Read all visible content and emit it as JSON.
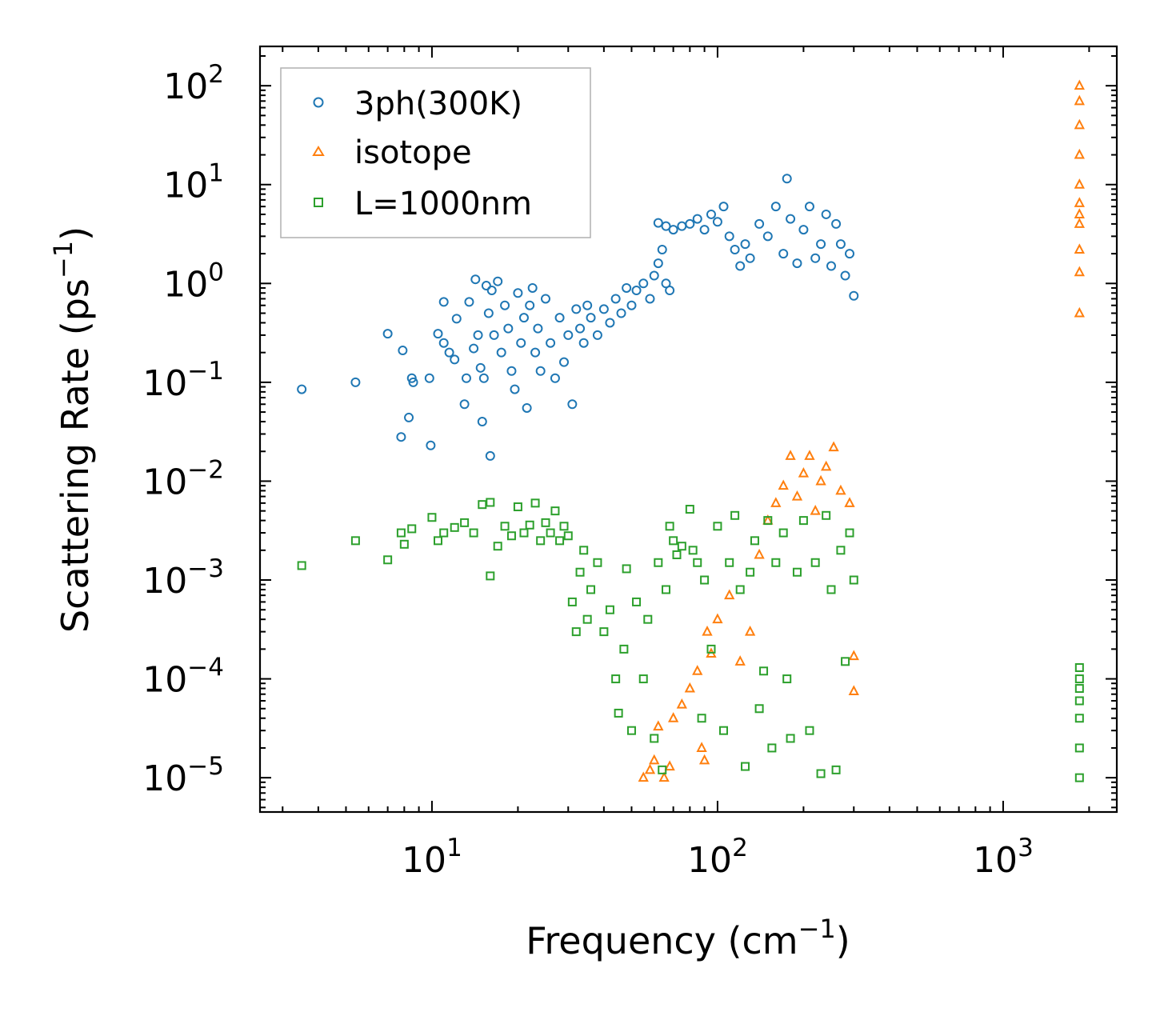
{
  "chart_data": {
    "type": "scatter",
    "title": "",
    "xlabel": "Frequency (cm",
    "xlabel_sup": "−1",
    "xlabel_end": ")",
    "ylabel": "Scattering Rate (ps",
    "ylabel_sup": "−1",
    "ylabel_end": ")",
    "xscale": "log",
    "yscale": "log",
    "xlim": [
      2.5,
      2500
    ],
    "ylim": [
      4.5e-06,
      250
    ],
    "grid": false,
    "legend_position": "upper left",
    "x_ticks": [
      {
        "value": 10,
        "base": "10",
        "exp": "1"
      },
      {
        "value": 100,
        "base": "10",
        "exp": "2"
      },
      {
        "value": 1000,
        "base": "10",
        "exp": "3"
      }
    ],
    "y_ticks": [
      {
        "value": 100,
        "base": "10",
        "exp": "2"
      },
      {
        "value": 10,
        "base": "10",
        "exp": "1"
      },
      {
        "value": 1,
        "base": "10",
        "exp": "0"
      },
      {
        "value": 0.1,
        "base": "10",
        "exp": "−1"
      },
      {
        "value": 0.01,
        "base": "10",
        "exp": "−2"
      },
      {
        "value": 0.001,
        "base": "10",
        "exp": "−3"
      },
      {
        "value": 0.0001,
        "base": "10",
        "exp": "−4"
      },
      {
        "value": 1e-05,
        "base": "10",
        "exp": "−5"
      }
    ],
    "series": [
      {
        "name": "3ph(300K)",
        "marker": "circle",
        "color": "#1f77b4",
        "points": [
          [
            3.5,
            0.085
          ],
          [
            5.4,
            0.1
          ],
          [
            7.0,
            0.31
          ],
          [
            7.8,
            0.028
          ],
          [
            7.9,
            0.21
          ],
          [
            8.3,
            0.044
          ],
          [
            8.5,
            0.11
          ],
          [
            8.6,
            0.1
          ],
          [
            9.8,
            0.11
          ],
          [
            9.9,
            0.023
          ],
          [
            10.5,
            0.31
          ],
          [
            11.0,
            0.65
          ],
          [
            11.0,
            0.25
          ],
          [
            11.5,
            0.2
          ],
          [
            12.0,
            0.17
          ],
          [
            12.2,
            0.44
          ],
          [
            13.0,
            0.06
          ],
          [
            13.2,
            0.11
          ],
          [
            13.5,
            0.65
          ],
          [
            14.0,
            0.22
          ],
          [
            14.2,
            1.1
          ],
          [
            14.5,
            0.3
          ],
          [
            14.8,
            0.14
          ],
          [
            15.0,
            0.04
          ],
          [
            15.2,
            0.11
          ],
          [
            15.5,
            0.95
          ],
          [
            15.8,
            0.5
          ],
          [
            16.0,
            0.018
          ],
          [
            16.2,
            0.85
          ],
          [
            16.5,
            0.3
          ],
          [
            17.0,
            1.05
          ],
          [
            17.5,
            0.2
          ],
          [
            18.0,
            0.6
          ],
          [
            18.5,
            0.35
          ],
          [
            19.0,
            0.13
          ],
          [
            19.5,
            0.085
          ],
          [
            20.0,
            0.8
          ],
          [
            20.5,
            0.25
          ],
          [
            21.0,
            0.45
          ],
          [
            21.5,
            0.055
          ],
          [
            22.0,
            0.6
          ],
          [
            22.5,
            0.9
          ],
          [
            23.0,
            0.2
          ],
          [
            23.5,
            0.35
          ],
          [
            24.0,
            0.13
          ],
          [
            25.0,
            0.7
          ],
          [
            26.0,
            0.25
          ],
          [
            27.0,
            0.11
          ],
          [
            28.0,
            0.45
          ],
          [
            29.0,
            0.16
          ],
          [
            30.0,
            0.3
          ],
          [
            31.0,
            0.06
          ],
          [
            32.0,
            0.55
          ],
          [
            33.0,
            0.35
          ],
          [
            34.0,
            0.25
          ],
          [
            35.0,
            0.6
          ],
          [
            36.0,
            0.45
          ],
          [
            38.0,
            0.3
          ],
          [
            40.0,
            0.55
          ],
          [
            42.0,
            0.4
          ],
          [
            44.0,
            0.7
          ],
          [
            46.0,
            0.5
          ],
          [
            48.0,
            0.9
          ],
          [
            50.0,
            0.6
          ],
          [
            52.0,
            0.85
          ],
          [
            55.0,
            1.0
          ],
          [
            58.0,
            0.7
          ],
          [
            60.0,
            1.2
          ],
          [
            62.0,
            1.6
          ],
          [
            64.0,
            2.2
          ],
          [
            66.0,
            1.0
          ],
          [
            68.0,
            0.85
          ],
          [
            62.0,
            4.1
          ],
          [
            66.0,
            3.8
          ],
          [
            70.0,
            3.5
          ],
          [
            75.0,
            3.8
          ],
          [
            80.0,
            4.0
          ],
          [
            85.0,
            4.5
          ],
          [
            90.0,
            3.5
          ],
          [
            95.0,
            5.0
          ],
          [
            100.0,
            4.2
          ],
          [
            105.0,
            6.0
          ],
          [
            110.0,
            3.0
          ],
          [
            115.0,
            2.2
          ],
          [
            120.0,
            1.5
          ],
          [
            125.0,
            2.5
          ],
          [
            130.0,
            1.8
          ],
          [
            140.0,
            4.0
          ],
          [
            150.0,
            3.0
          ],
          [
            160.0,
            6.0
          ],
          [
            170.0,
            2.0
          ],
          [
            175.0,
            11.5
          ],
          [
            180.0,
            4.5
          ],
          [
            190.0,
            1.6
          ],
          [
            200.0,
            3.5
          ],
          [
            210.0,
            6.0
          ],
          [
            220.0,
            1.8
          ],
          [
            230.0,
            2.5
          ],
          [
            240.0,
            5.0
          ],
          [
            250.0,
            1.5
          ],
          [
            260.0,
            4.0
          ],
          [
            270.0,
            2.5
          ],
          [
            280.0,
            1.2
          ],
          [
            290.0,
            2.0
          ],
          [
            300.0,
            0.75
          ]
        ]
      },
      {
        "name": "isotope",
        "marker": "triangle",
        "color": "#ff7f0e",
        "points": [
          [
            55.0,
            1e-05
          ],
          [
            58.0,
            1.2e-05
          ],
          [
            60.0,
            1.5e-05
          ],
          [
            62.0,
            3.3e-05
          ],
          [
            65.0,
            1e-05
          ],
          [
            68.0,
            1.3e-05
          ],
          [
            70.0,
            4e-05
          ],
          [
            75.0,
            5.5e-05
          ],
          [
            80.0,
            8e-05
          ],
          [
            85.0,
            0.00012
          ],
          [
            88.0,
            2e-05
          ],
          [
            90.0,
            1.5e-05
          ],
          [
            92.0,
            0.0003
          ],
          [
            95.0,
            0.00018
          ],
          [
            100.0,
            0.0004
          ],
          [
            110.0,
            0.0007
          ],
          [
            120.0,
            0.00015
          ],
          [
            130.0,
            0.0003
          ],
          [
            140.0,
            0.0018
          ],
          [
            150.0,
            0.004
          ],
          [
            160.0,
            0.006
          ],
          [
            170.0,
            0.009
          ],
          [
            180.0,
            0.018
          ],
          [
            190.0,
            0.007
          ],
          [
            200.0,
            0.012
          ],
          [
            210.0,
            0.018
          ],
          [
            220.0,
            0.005
          ],
          [
            230.0,
            0.01
          ],
          [
            240.0,
            0.014
          ],
          [
            255.0,
            0.022
          ],
          [
            270.0,
            0.008
          ],
          [
            290.0,
            0.006
          ],
          [
            300.0,
            7.5e-05
          ],
          [
            300.0,
            0.00017
          ],
          [
            1850.0,
            0.5
          ],
          [
            1850.0,
            1.3
          ],
          [
            1850.0,
            2.2
          ],
          [
            1850.0,
            4.0
          ],
          [
            1850.0,
            5.0
          ],
          [
            1850.0,
            6.5
          ],
          [
            1850.0,
            10.0
          ],
          [
            1850.0,
            20.0
          ],
          [
            1850.0,
            40.0
          ],
          [
            1850.0,
            70.0
          ],
          [
            1850.0,
            100.0
          ]
        ]
      },
      {
        "name": "L=1000nm",
        "marker": "square",
        "color": "#2ca02c",
        "points": [
          [
            3.5,
            0.0014
          ],
          [
            5.4,
            0.0025
          ],
          [
            7.0,
            0.0016
          ],
          [
            7.8,
            0.003
          ],
          [
            8.0,
            0.0023
          ],
          [
            8.5,
            0.0033
          ],
          [
            10.0,
            0.0043
          ],
          [
            10.5,
            0.0025
          ],
          [
            11.0,
            0.003
          ],
          [
            12.0,
            0.0034
          ],
          [
            13.0,
            0.0038
          ],
          [
            14.0,
            0.003
          ],
          [
            15.0,
            0.0058
          ],
          [
            16.0,
            0.0061
          ],
          [
            16.0,
            0.0011
          ],
          [
            17.0,
            0.0022
          ],
          [
            18.0,
            0.0035
          ],
          [
            19.0,
            0.0028
          ],
          [
            20.0,
            0.0055
          ],
          [
            21.0,
            0.003
          ],
          [
            22.0,
            0.0036
          ],
          [
            23.0,
            0.006
          ],
          [
            24.0,
            0.0025
          ],
          [
            25.0,
            0.0038
          ],
          [
            26.0,
            0.003
          ],
          [
            27.0,
            0.005
          ],
          [
            28.0,
            0.0025
          ],
          [
            29.0,
            0.0035
          ],
          [
            30.0,
            0.0028
          ],
          [
            31.0,
            0.0006
          ],
          [
            32.0,
            0.0003
          ],
          [
            33.0,
            0.0012
          ],
          [
            34.0,
            0.002
          ],
          [
            35.0,
            0.0004
          ],
          [
            36.0,
            0.0008
          ],
          [
            38.0,
            0.0015
          ],
          [
            40.0,
            0.0003
          ],
          [
            42.0,
            0.0005
          ],
          [
            44.0,
            0.0001
          ],
          [
            45.0,
            4.5e-05
          ],
          [
            47.0,
            0.0002
          ],
          [
            48.0,
            0.0013
          ],
          [
            50.0,
            3e-05
          ],
          [
            52.0,
            0.0006
          ],
          [
            55.0,
            0.0001
          ],
          [
            57.0,
            0.0004
          ],
          [
            60.0,
            2.5e-05
          ],
          [
            62.0,
            0.0015
          ],
          [
            64.0,
            1.2e-05
          ],
          [
            66.0,
            0.0008
          ],
          [
            68.0,
            0.0035
          ],
          [
            70.0,
            0.0025
          ],
          [
            72.0,
            0.0018
          ],
          [
            75.0,
            0.0022
          ],
          [
            80.0,
            0.0052
          ],
          [
            82.0,
            0.002
          ],
          [
            85.0,
            0.0015
          ],
          [
            88.0,
            4e-05
          ],
          [
            90.0,
            0.001
          ],
          [
            95.0,
            0.0002
          ],
          [
            100.0,
            0.0035
          ],
          [
            105.0,
            3e-05
          ],
          [
            110.0,
            0.0015
          ],
          [
            115.0,
            0.0045
          ],
          [
            120.0,
            0.0008
          ],
          [
            125.0,
            1.3e-05
          ],
          [
            130.0,
            0.0012
          ],
          [
            135.0,
            0.0025
          ],
          [
            140.0,
            5e-05
          ],
          [
            145.0,
            0.00012
          ],
          [
            150.0,
            0.004
          ],
          [
            155.0,
            2e-05
          ],
          [
            160.0,
            0.0015
          ],
          [
            170.0,
            0.003
          ],
          [
            175.0,
            0.0001
          ],
          [
            180.0,
            2.5e-05
          ],
          [
            190.0,
            0.0012
          ],
          [
            200.0,
            0.004
          ],
          [
            210.0,
            3e-05
          ],
          [
            220.0,
            0.0015
          ],
          [
            230.0,
            1.1e-05
          ],
          [
            240.0,
            0.0045
          ],
          [
            250.0,
            0.0008
          ],
          [
            260.0,
            1.2e-05
          ],
          [
            270.0,
            0.002
          ],
          [
            280.0,
            0.00015
          ],
          [
            290.0,
            0.003
          ],
          [
            300.0,
            0.001
          ],
          [
            1850.0,
            1e-05
          ],
          [
            1850.0,
            2e-05
          ],
          [
            1850.0,
            4e-05
          ],
          [
            1850.0,
            6e-05
          ],
          [
            1850.0,
            8e-05
          ],
          [
            1850.0,
            0.0001
          ],
          [
            1850.0,
            0.00013
          ]
        ]
      }
    ]
  }
}
